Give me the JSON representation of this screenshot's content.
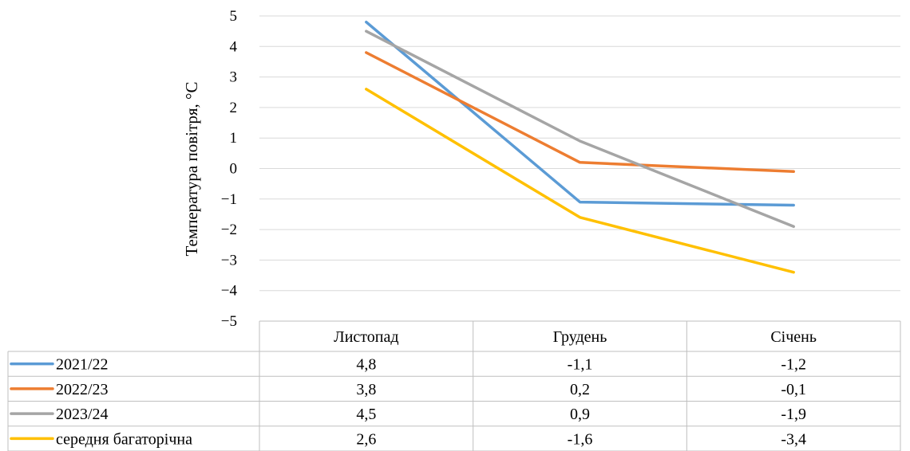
{
  "chart_data": {
    "type": "line",
    "title": "",
    "xlabel": "",
    "ylabel": "Температура повітря, °С",
    "categories": [
      "Листопад",
      "Грудень",
      "Січень"
    ],
    "ylim": [
      -5,
      5
    ],
    "yticks": [
      5,
      4,
      3,
      2,
      1,
      0,
      -1,
      -2,
      -3,
      -4,
      -5
    ],
    "grid": true,
    "legend": "data-table",
    "series": [
      {
        "name": "2021/22",
        "color": "#5b9bd5",
        "values": [
          4.8,
          -1.1,
          -1.2
        ],
        "labels": [
          "4,8",
          "-1,1",
          "-1,2"
        ]
      },
      {
        "name": "2022/23",
        "color": "#ed7d31",
        "values": [
          3.8,
          0.2,
          -0.1
        ],
        "labels": [
          "3,8",
          "0,2",
          "-0,1"
        ]
      },
      {
        "name": "2023/24",
        "color": "#a5a5a5",
        "values": [
          4.5,
          0.9,
          -1.9
        ],
        "labels": [
          "4,5",
          "0,9",
          "-1,9"
        ]
      },
      {
        "name": "середня багаторічна",
        "color": "#ffc000",
        "values": [
          2.6,
          -1.6,
          -3.4
        ],
        "labels": [
          "2,6",
          "-1,6",
          "-3,4"
        ]
      }
    ]
  }
}
